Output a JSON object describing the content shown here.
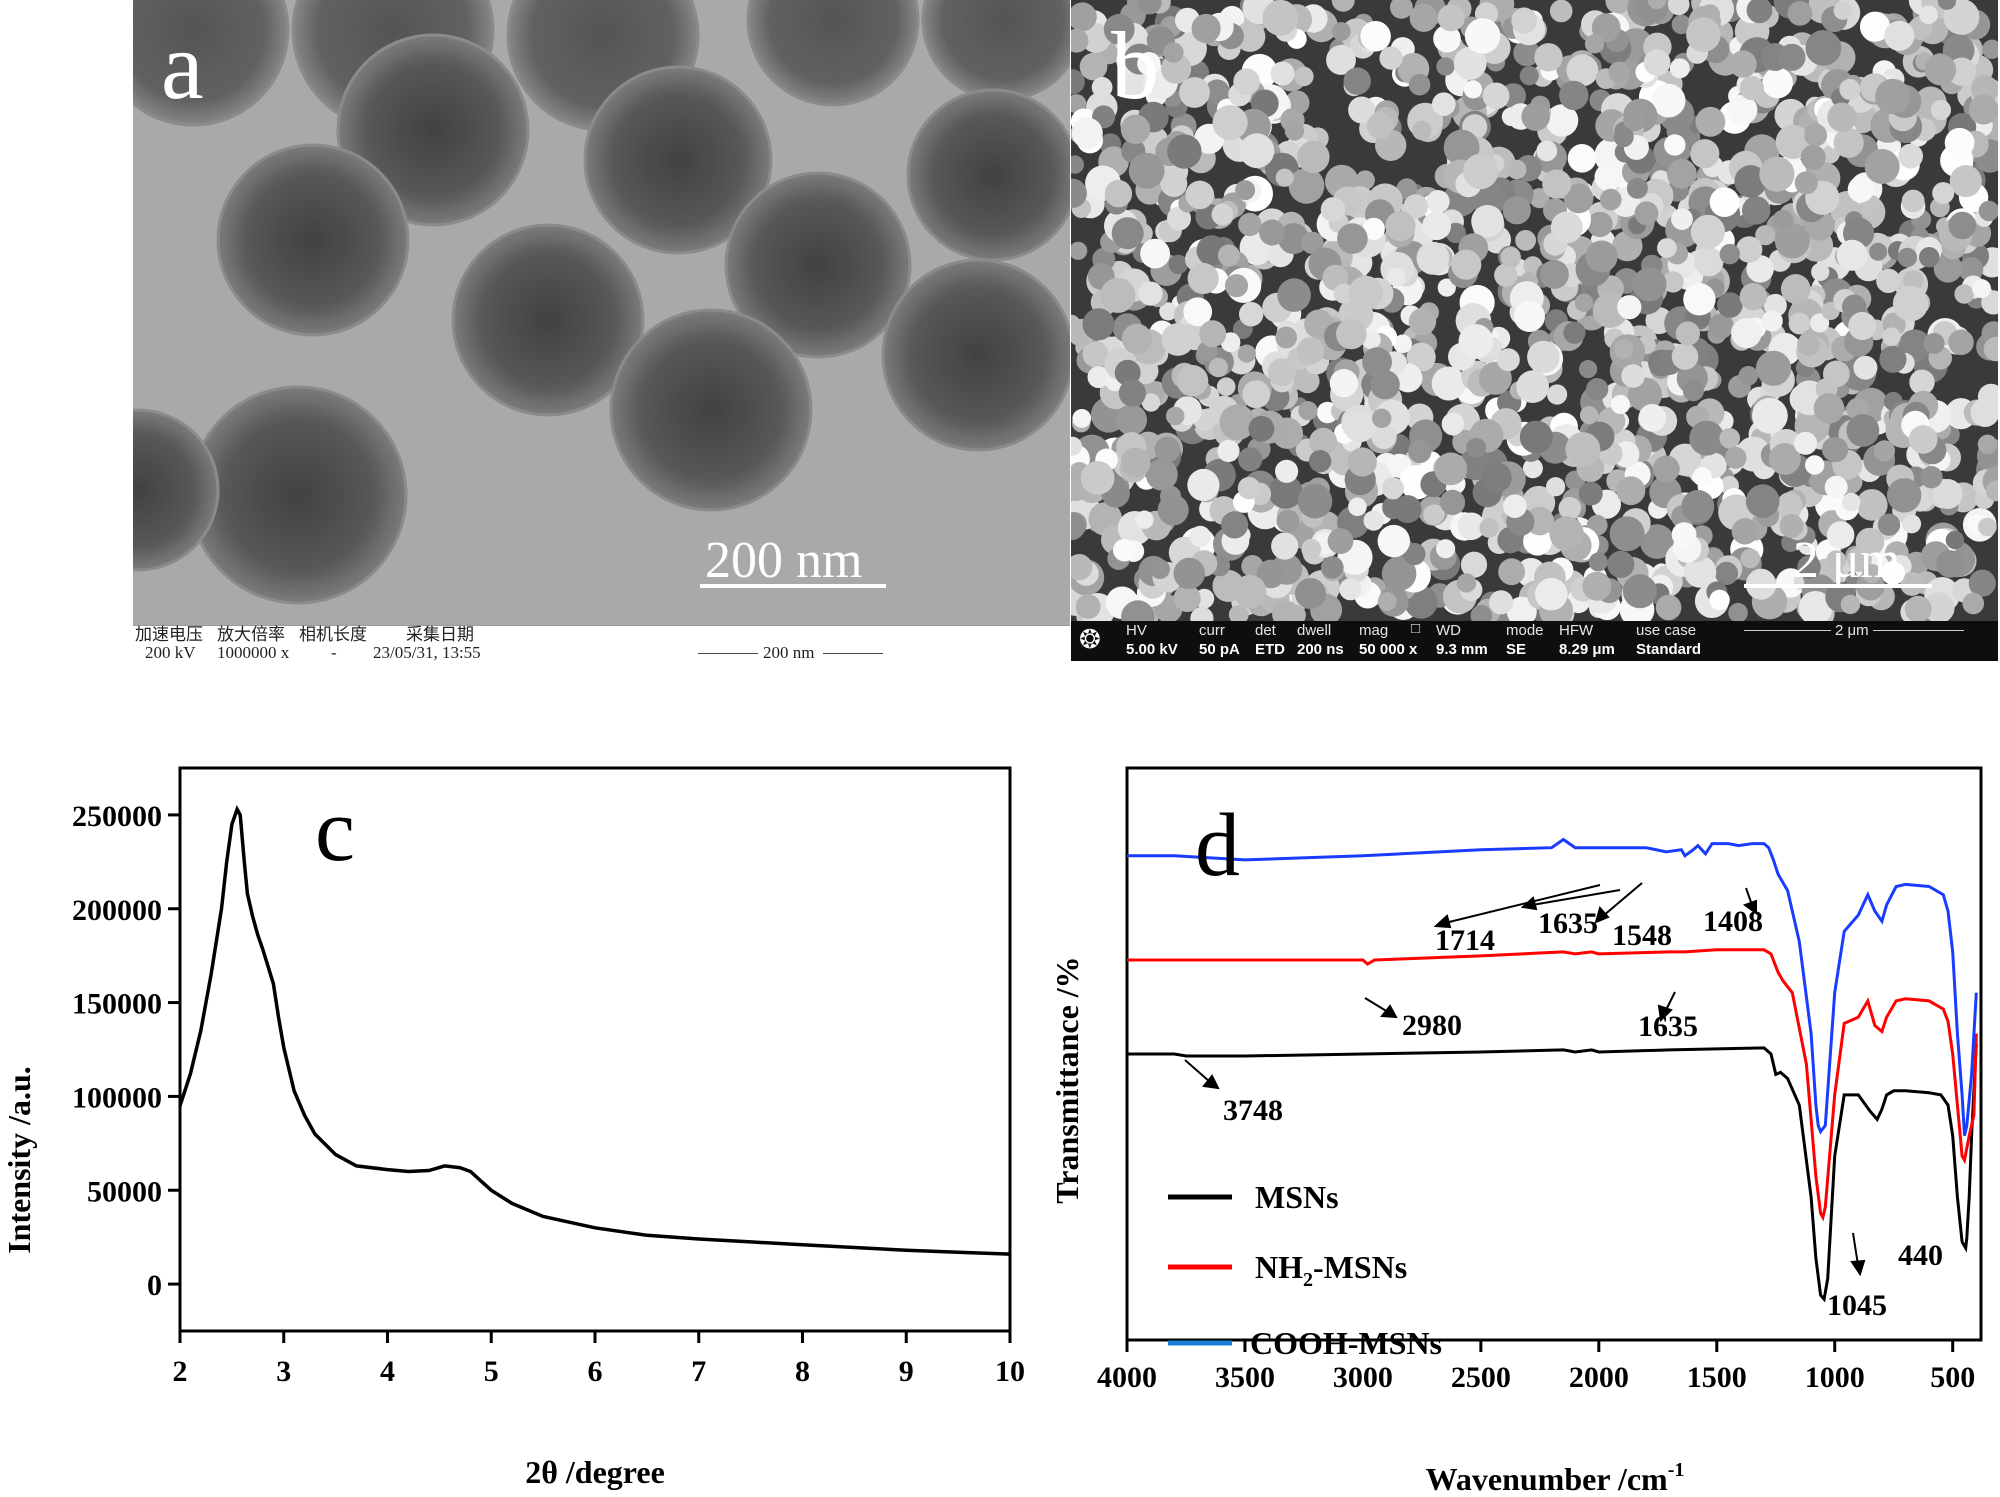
{
  "panel_a": {
    "label": "a",
    "scale_bar": "200 nm",
    "info": {
      "h1": "加速电压",
      "v1": "200 kV",
      "h2": "放大倍率",
      "v2": "1000000 x",
      "h3": "相机长度",
      "v3": "-",
      "h4": "采集日期",
      "v4": "23/05/31, 13:55",
      "scale": "200 nm"
    }
  },
  "panel_b": {
    "label": "b",
    "scale_bar": "2 μm",
    "info": {
      "hv_h": "HV",
      "hv_v": "5.00 kV",
      "curr_h": "curr",
      "curr_v": "50 pA",
      "det_h": "det",
      "det_v": "ETD",
      "dwell_h": "dwell",
      "dwell_v": "200 ns",
      "mag_h": "mag",
      "mag_v": "50 000 x",
      "wd_h": "WD",
      "wd_v": "9.3 mm",
      "mode_h": "mode",
      "mode_v": "SE",
      "hfw_h": "HFW",
      "hfw_v": "8.29 μm",
      "use_h": "use case",
      "use_v": "Standard",
      "scale": "2 μm"
    }
  },
  "chart_data": [
    {
      "panel": "c",
      "type": "line",
      "xlabel": "2θ /degree",
      "ylabel": "Intensity /a.u.",
      "xlim": [
        2,
        10
      ],
      "ylim": [
        -25000,
        275000
      ],
      "xticks": [
        2,
        3,
        4,
        5,
        6,
        7,
        8,
        9,
        10
      ],
      "yticks": [
        0,
        50000,
        100000,
        150000,
        200000,
        250000
      ],
      "series": [
        {
          "color": "#000000",
          "x": [
            2.0,
            2.1,
            2.2,
            2.3,
            2.4,
            2.45,
            2.5,
            2.55,
            2.58,
            2.62,
            2.65,
            2.7,
            2.75,
            2.8,
            2.9,
            2.95,
            3.0,
            3.1,
            3.2,
            3.3,
            3.5,
            3.7,
            4.0,
            4.2,
            4.4,
            4.55,
            4.7,
            4.8,
            4.9,
            5.0,
            5.2,
            5.5,
            6.0,
            6.5,
            7.0,
            7.5,
            8.0,
            8.5,
            9.0,
            9.5,
            10.0
          ],
          "y": [
            95000,
            112000,
            135000,
            165000,
            200000,
            225000,
            245000,
            253000,
            250000,
            225000,
            208000,
            196000,
            186000,
            178000,
            160000,
            142000,
            126000,
            103000,
            90000,
            80000,
            69000,
            63000,
            61000,
            60000,
            60500,
            63000,
            62000,
            60000,
            55000,
            50000,
            43000,
            36000,
            30000,
            26000,
            24000,
            22500,
            21000,
            19500,
            18000,
            17000,
            16000
          ]
        }
      ]
    },
    {
      "panel": "d",
      "type": "line",
      "xlabel": "Wavenumber /cm",
      "xlabel_sup": "-1",
      "ylabel": "Transmittance /%",
      "xlim": [
        4000,
        380
      ],
      "xticks": [
        4000,
        3500,
        3000,
        2500,
        2000,
        1500,
        1000,
        500
      ],
      "legend_position": "bottom-left",
      "series": [
        {
          "name": "MSNs",
          "color": "#000000",
          "x": [
            4000,
            3800,
            3748,
            3500,
            3000,
            2500,
            2150,
            2100,
            2030,
            2000,
            1700,
            1500,
            1300,
            1270,
            1250,
            1230,
            1200,
            1150,
            1100,
            1080,
            1060,
            1045,
            1030,
            1000,
            960,
            900,
            850,
            820,
            800,
            780,
            750,
            700,
            600,
            550,
            520,
            500,
            480,
            460,
            445,
            440,
            430,
            420,
            400
          ],
          "y": [
            30,
            30,
            29,
            29,
            30,
            31,
            32,
            31,
            32,
            31,
            32,
            32.5,
            33,
            30,
            20,
            21,
            18,
            5,
            -40,
            -70,
            -88,
            -90,
            -80,
            -20,
            10,
            10,
            2,
            -2,
            3,
            10,
            12,
            12,
            11,
            10,
            5,
            -10,
            -40,
            -62,
            -65,
            -60,
            -40,
            -10,
            35
          ]
        },
        {
          "name": "NH2-MSNs",
          "color": "#ff0000",
          "x": [
            4000,
            3500,
            3000,
            2980,
            2950,
            2500,
            2150,
            2100,
            2030,
            2000,
            1700,
            1635,
            1500,
            1300,
            1270,
            1240,
            1220,
            1180,
            1120,
            1080,
            1060,
            1050,
            1040,
            1000,
            960,
            900,
            860,
            830,
            800,
            780,
            740,
            700,
            600,
            540,
            520,
            500,
            480,
            460,
            450,
            430,
            410,
            400
          ],
          "y": [
            76,
            76,
            76,
            74,
            76,
            78,
            80,
            79,
            80,
            79,
            80,
            80,
            81,
            81,
            79,
            70,
            66,
            60,
            25,
            -30,
            -48,
            -50,
            -45,
            10,
            45,
            48,
            56,
            44,
            41,
            48,
            56,
            57,
            56,
            52,
            46,
            30,
            5,
            -20,
            -22,
            -10,
            0,
            40
          ]
        },
        {
          "name": "COOH-MSNs",
          "color": "#1a3cff",
          "x": [
            4000,
            3800,
            3500,
            3000,
            2500,
            2200,
            2150,
            2100,
            1800,
            1714,
            1650,
            1635,
            1600,
            1580,
            1548,
            1520,
            1450,
            1408,
            1350,
            1300,
            1280,
            1260,
            1240,
            1200,
            1150,
            1100,
            1080,
            1070,
            1060,
            1040,
            1000,
            960,
            900,
            860,
            830,
            800,
            780,
            740,
            700,
            600,
            540,
            520,
            500,
            480,
            460,
            450,
            440,
            420,
            400
          ],
          "y": [
            127,
            127,
            125,
            127,
            130,
            131,
            135,
            131,
            131,
            129,
            130,
            127,
            130,
            132,
            128,
            133,
            133,
            132,
            133,
            133,
            131,
            125,
            118,
            110,
            85,
            40,
            5,
            -5,
            -8,
            -5,
            60,
            90,
            98,
            108,
            100,
            95,
            103,
            112,
            113,
            112,
            108,
            100,
            80,
            40,
            10,
            -10,
            -5,
            20,
            60
          ]
        }
      ],
      "annotations": [
        "3748",
        "2980",
        "1635",
        "1714",
        "1635",
        "1548",
        "1408",
        "1045",
        "440"
      ]
    }
  ],
  "panel_c": {
    "label": "c"
  },
  "panel_d": {
    "label": "d"
  }
}
